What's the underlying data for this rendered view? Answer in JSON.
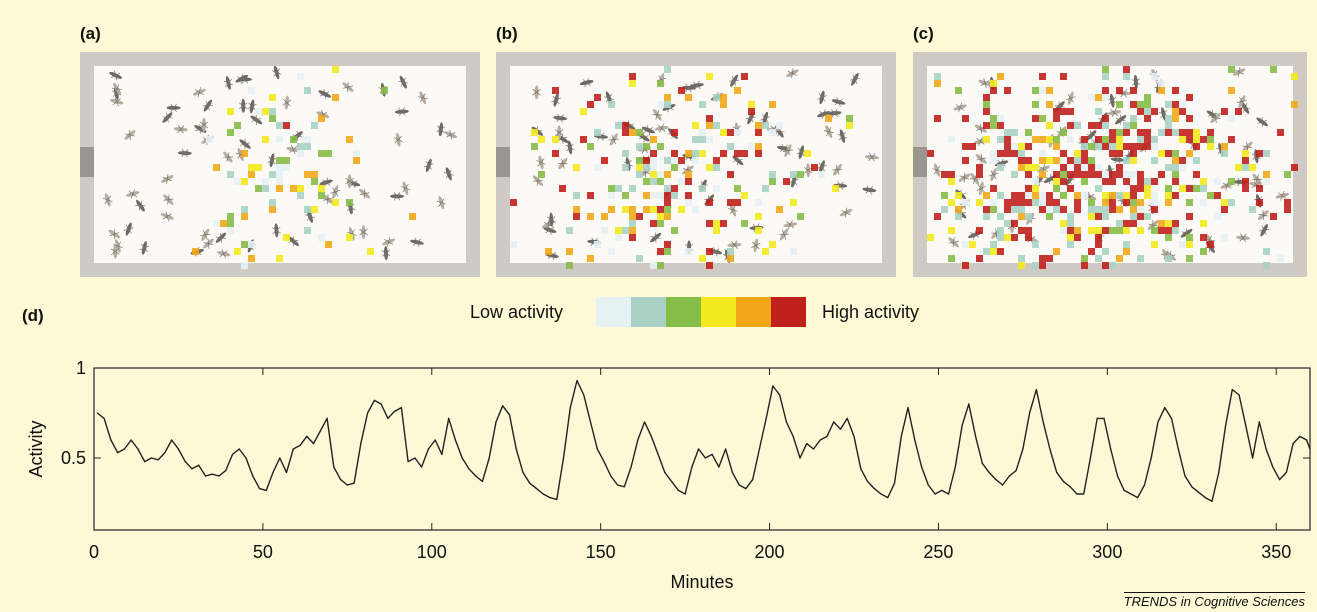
{
  "panels": {
    "a": {
      "label": "(a)"
    },
    "b": {
      "label": "(b)"
    },
    "c": {
      "label": "(c)"
    },
    "d": {
      "label": "(d)"
    }
  },
  "legend": {
    "low_label": "Low activity",
    "high_label": "High activity",
    "colors": [
      "#e6f1f4",
      "#a9d2c4",
      "#86bd47",
      "#f3ea1e",
      "#f1a817",
      "#c0201c"
    ]
  },
  "heatmap_density": {
    "a": 0.35,
    "b": 0.6,
    "c": 0.9
  },
  "credit": "TRENDS in Cognitive Sciences",
  "chart_data": {
    "type": "line",
    "xlabel": "Minutes",
    "ylabel": "Activity",
    "xlim": [
      0,
      360
    ],
    "ylim": [
      0.1,
      1
    ],
    "xticks": [
      "0",
      "50",
      "100",
      "150",
      "200",
      "250",
      "300",
      "350"
    ],
    "yticks": [
      "0.5",
      "1"
    ],
    "grid": false,
    "line_color": "#222222",
    "points": [
      [
        1,
        0.75
      ],
      [
        3,
        0.72
      ],
      [
        5,
        0.6
      ],
      [
        7,
        0.53
      ],
      [
        9,
        0.55
      ],
      [
        11,
        0.6
      ],
      [
        13,
        0.55
      ],
      [
        15,
        0.48
      ],
      [
        17,
        0.5
      ],
      [
        19,
        0.49
      ],
      [
        21,
        0.53
      ],
      [
        23,
        0.6
      ],
      [
        25,
        0.55
      ],
      [
        27,
        0.48
      ],
      [
        29,
        0.44
      ],
      [
        31,
        0.46
      ],
      [
        33,
        0.4
      ],
      [
        35,
        0.41
      ],
      [
        37,
        0.4
      ],
      [
        39,
        0.43
      ],
      [
        41,
        0.52
      ],
      [
        43,
        0.55
      ],
      [
        45,
        0.5
      ],
      [
        47,
        0.4
      ],
      [
        49,
        0.33
      ],
      [
        51,
        0.32
      ],
      [
        53,
        0.42
      ],
      [
        55,
        0.5
      ],
      [
        57,
        0.42
      ],
      [
        59,
        0.55
      ],
      [
        61,
        0.57
      ],
      [
        63,
        0.62
      ],
      [
        65,
        0.58
      ],
      [
        67,
        0.65
      ],
      [
        69,
        0.72
      ],
      [
        71,
        0.45
      ],
      [
        73,
        0.38
      ],
      [
        75,
        0.35
      ],
      [
        77,
        0.36
      ],
      [
        79,
        0.58
      ],
      [
        81,
        0.75
      ],
      [
        83,
        0.82
      ],
      [
        85,
        0.8
      ],
      [
        87,
        0.72
      ],
      [
        89,
        0.76
      ],
      [
        91,
        0.78
      ],
      [
        93,
        0.48
      ],
      [
        95,
        0.5
      ],
      [
        97,
        0.45
      ],
      [
        99,
        0.55
      ],
      [
        101,
        0.6
      ],
      [
        103,
        0.52
      ],
      [
        105,
        0.72
      ],
      [
        107,
        0.6
      ],
      [
        109,
        0.5
      ],
      [
        111,
        0.44
      ],
      [
        113,
        0.4
      ],
      [
        115,
        0.37
      ],
      [
        117,
        0.5
      ],
      [
        119,
        0.7
      ],
      [
        121,
        0.79
      ],
      [
        123,
        0.74
      ],
      [
        125,
        0.55
      ],
      [
        127,
        0.42
      ],
      [
        129,
        0.36
      ],
      [
        131,
        0.33
      ],
      [
        133,
        0.3
      ],
      [
        135,
        0.28
      ],
      [
        137,
        0.27
      ],
      [
        139,
        0.5
      ],
      [
        141,
        0.78
      ],
      [
        143,
        0.93
      ],
      [
        145,
        0.85
      ],
      [
        147,
        0.7
      ],
      [
        149,
        0.55
      ],
      [
        151,
        0.48
      ],
      [
        153,
        0.4
      ],
      [
        155,
        0.35
      ],
      [
        157,
        0.34
      ],
      [
        159,
        0.45
      ],
      [
        161,
        0.6
      ],
      [
        163,
        0.7
      ],
      [
        165,
        0.62
      ],
      [
        167,
        0.52
      ],
      [
        169,
        0.42
      ],
      [
        171,
        0.37
      ],
      [
        173,
        0.32
      ],
      [
        175,
        0.3
      ],
      [
        177,
        0.45
      ],
      [
        179,
        0.55
      ],
      [
        181,
        0.5
      ],
      [
        183,
        0.52
      ],
      [
        185,
        0.45
      ],
      [
        187,
        0.55
      ],
      [
        189,
        0.42
      ],
      [
        191,
        0.35
      ],
      [
        193,
        0.33
      ],
      [
        195,
        0.38
      ],
      [
        197,
        0.55
      ],
      [
        199,
        0.72
      ],
      [
        201,
        0.9
      ],
      [
        203,
        0.85
      ],
      [
        205,
        0.7
      ],
      [
        207,
        0.62
      ],
      [
        209,
        0.5
      ],
      [
        211,
        0.58
      ],
      [
        213,
        0.55
      ],
      [
        215,
        0.6
      ],
      [
        217,
        0.62
      ],
      [
        219,
        0.7
      ],
      [
        221,
        0.66
      ],
      [
        223,
        0.72
      ],
      [
        225,
        0.62
      ],
      [
        227,
        0.44
      ],
      [
        229,
        0.37
      ],
      [
        231,
        0.33
      ],
      [
        233,
        0.3
      ],
      [
        235,
        0.28
      ],
      [
        237,
        0.36
      ],
      [
        239,
        0.62
      ],
      [
        241,
        0.78
      ],
      [
        243,
        0.6
      ],
      [
        245,
        0.45
      ],
      [
        247,
        0.35
      ],
      [
        249,
        0.3
      ],
      [
        251,
        0.32
      ],
      [
        253,
        0.3
      ],
      [
        255,
        0.45
      ],
      [
        257,
        0.68
      ],
      [
        259,
        0.8
      ],
      [
        261,
        0.62
      ],
      [
        263,
        0.47
      ],
      [
        265,
        0.42
      ],
      [
        267,
        0.38
      ],
      [
        269,
        0.35
      ],
      [
        271,
        0.4
      ],
      [
        273,
        0.43
      ],
      [
        275,
        0.55
      ],
      [
        277,
        0.75
      ],
      [
        279,
        0.88
      ],
      [
        281,
        0.7
      ],
      [
        283,
        0.55
      ],
      [
        285,
        0.42
      ],
      [
        287,
        0.37
      ],
      [
        289,
        0.34
      ],
      [
        291,
        0.3
      ],
      [
        293,
        0.3
      ],
      [
        295,
        0.5
      ],
      [
        297,
        0.72
      ],
      [
        299,
        0.72
      ],
      [
        301,
        0.55
      ],
      [
        303,
        0.4
      ],
      [
        305,
        0.32
      ],
      [
        307,
        0.3
      ],
      [
        309,
        0.28
      ],
      [
        311,
        0.35
      ],
      [
        313,
        0.5
      ],
      [
        315,
        0.7
      ],
      [
        317,
        0.78
      ],
      [
        319,
        0.72
      ],
      [
        321,
        0.55
      ],
      [
        323,
        0.4
      ],
      [
        325,
        0.34
      ],
      [
        327,
        0.31
      ],
      [
        329,
        0.28
      ],
      [
        331,
        0.26
      ],
      [
        333,
        0.42
      ],
      [
        335,
        0.68
      ],
      [
        337,
        0.88
      ],
      [
        339,
        0.85
      ],
      [
        341,
        0.68
      ],
      [
        343,
        0.5
      ],
      [
        345,
        0.7
      ],
      [
        347,
        0.55
      ],
      [
        349,
        0.45
      ],
      [
        351,
        0.38
      ],
      [
        353,
        0.42
      ],
      [
        355,
        0.58
      ],
      [
        357,
        0.62
      ],
      [
        359,
        0.6
      ],
      [
        360,
        0.55
      ]
    ]
  }
}
